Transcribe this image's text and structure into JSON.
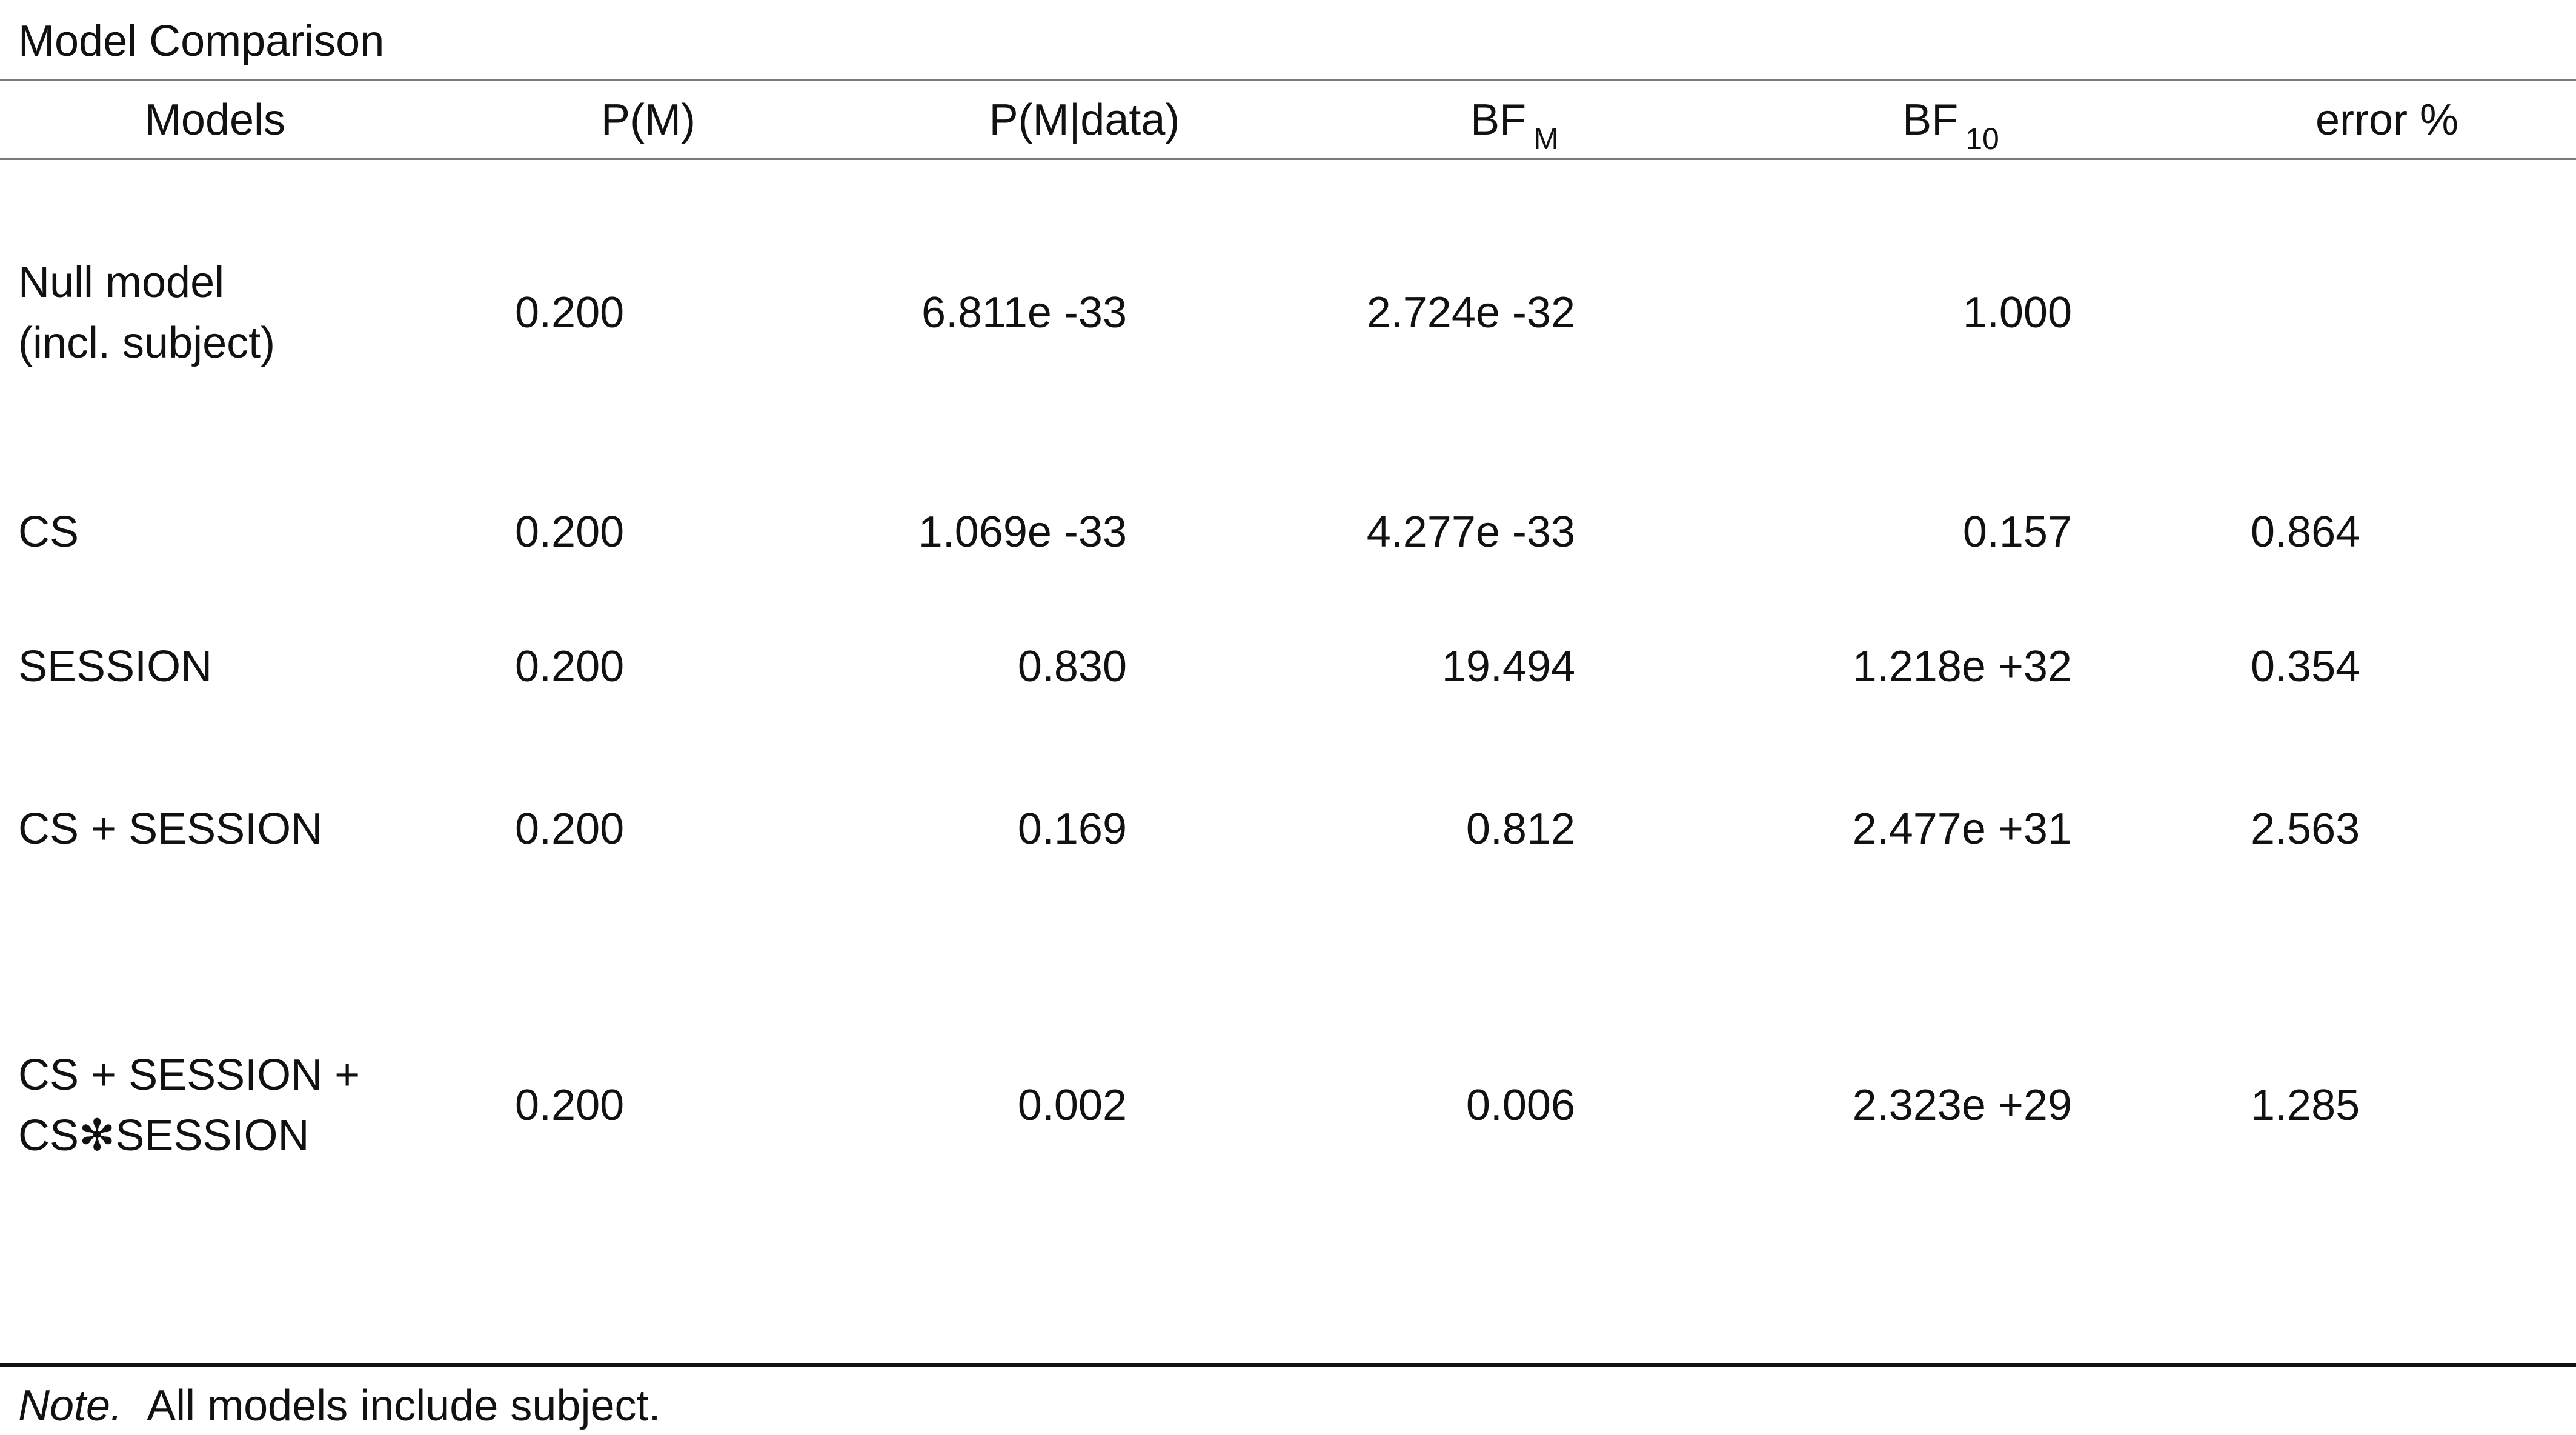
{
  "table": {
    "title": "Model Comparison",
    "headers": {
      "models": "Models",
      "pm": "P(M)",
      "pmd": "P(M|data)",
      "bfm_main": "BF",
      "bfm_sub": "M",
      "bf10_main": "BF",
      "bf10_sub": "10",
      "error": "error %"
    },
    "rows": [
      {
        "model_line1": "Null model",
        "model_line2": "(incl. subject)",
        "pm": "0.200",
        "pmd": "6.811e -33",
        "bfm": "2.724e -32",
        "bf10": "1.000",
        "error": ""
      },
      {
        "model_line1": "CS",
        "model_line2": "",
        "pm": "0.200",
        "pmd": "1.069e -33",
        "bfm": "4.277e -33",
        "bf10": "0.157",
        "error": "0.864"
      },
      {
        "model_line1": "SESSION",
        "model_line2": "",
        "pm": "0.200",
        "pmd": "0.830",
        "bfm": "19.494",
        "bf10": "1.218e +32",
        "error": "0.354"
      },
      {
        "model_line1": "CS + SESSION",
        "model_line2": "",
        "pm": "0.200",
        "pmd": "0.169",
        "bfm": "0.812",
        "bf10": "2.477e +31",
        "error": "2.563"
      },
      {
        "model_line1": "CS + SESSION +",
        "model_line2": "CS✻SESSION",
        "pm": "0.200",
        "pmd": "0.002",
        "bfm": "0.006",
        "bf10": "2.323e +29",
        "error": "1.285"
      }
    ],
    "note_label": "Note.",
    "note_text": "All models include subject."
  }
}
